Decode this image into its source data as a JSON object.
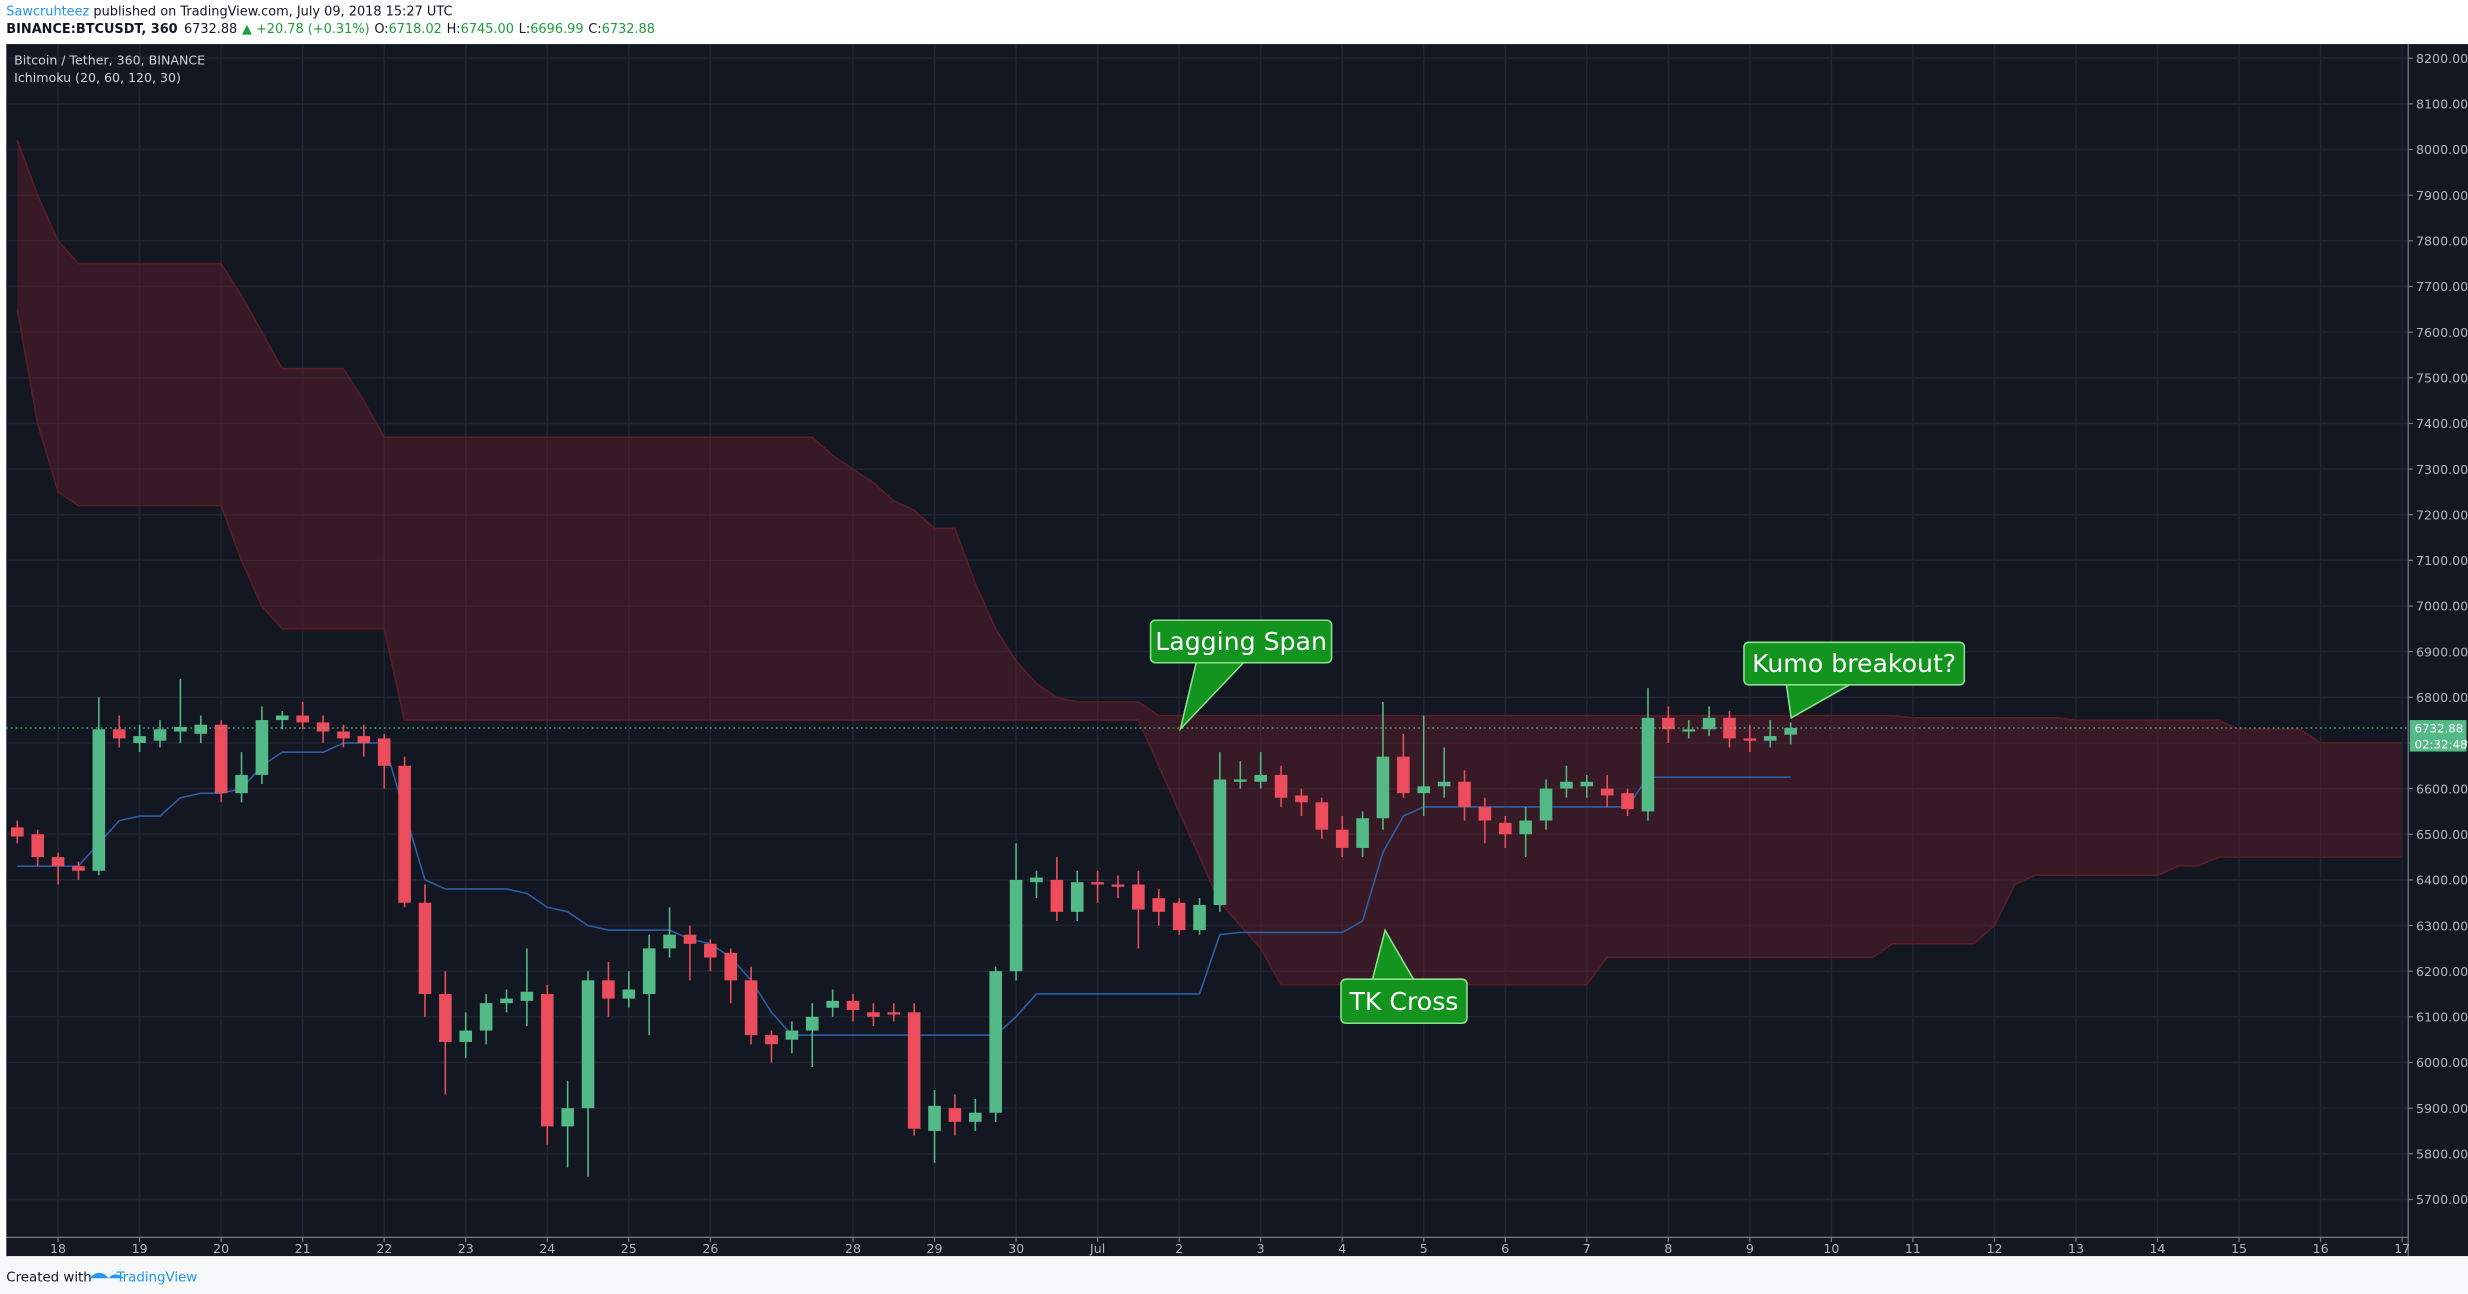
{
  "header": {
    "author": "Sawcruhteez",
    "published": " published on TradingView.com, July 09, 2018 15:27 UTC",
    "symbol": "BINANCE:BTCUSDT, 360",
    "last": "6732.88",
    "change": "▲ +20.78 (+0.31%)",
    "open_label": "O:",
    "open": "6718.02",
    "high_label": "H:",
    "high": "6745.00",
    "low_label": "L:",
    "low": "6696.99",
    "close_label": "C:",
    "close": "6732.88"
  },
  "footer": {
    "created": "Created with",
    "brand": "TradingView"
  },
  "chart_data": {
    "type": "candlestick",
    "title": "Bitcoin / Tether, 360, BINANCE",
    "subtitle": "Ichimoku (20, 60, 120, 30)",
    "up_color": "#53b987",
    "down_color": "#eb4d5c",
    "countdown": "02:32:48",
    "ylim": [
      5617,
      8231
    ],
    "yticks": [
      {
        "value": 5700,
        "label": "5700.00"
      },
      {
        "value": 5800,
        "label": "5800.00"
      },
      {
        "value": 5900,
        "label": "5900.00"
      },
      {
        "value": 6000,
        "label": "6000.00"
      },
      {
        "value": 6100,
        "label": "6100.00"
      },
      {
        "value": 6200,
        "label": "6200.00"
      },
      {
        "value": 6300,
        "label": "6300.00"
      },
      {
        "value": 6400,
        "label": "6400.00"
      },
      {
        "value": 6500,
        "label": "6500.00"
      },
      {
        "value": 6600,
        "label": "6600.00"
      },
      {
        "value": 6700,
        "label": "6700.00"
      },
      {
        "value": 6800,
        "label": "6800.00"
      },
      {
        "value": 6900,
        "label": "6900.00"
      },
      {
        "value": 7000,
        "label": "7000.00"
      },
      {
        "value": 7100,
        "label": "7100.00"
      },
      {
        "value": 7200,
        "label": "7200.00"
      },
      {
        "value": 7300,
        "label": "7300.00"
      },
      {
        "value": 7400,
        "label": "7400.00"
      },
      {
        "value": 7500,
        "label": "7500.00"
      },
      {
        "value": 7600,
        "label": "7600.00"
      },
      {
        "value": 7700,
        "label": "7700.00"
      },
      {
        "value": 7800,
        "label": "7800.00"
      },
      {
        "value": 7900,
        "label": "7900.00"
      },
      {
        "value": 8000,
        "label": "8000.00"
      },
      {
        "value": 8100,
        "label": "8100.00"
      },
      {
        "value": 8200,
        "label": "8200.00"
      }
    ],
    "grid": true,
    "categories": [
      null,
      null,
      "18",
      null,
      null,
      null,
      "19",
      null,
      null,
      null,
      "20",
      null,
      null,
      null,
      "21",
      null,
      null,
      null,
      "22",
      null,
      null,
      null,
      "23",
      null,
      null,
      null,
      "24",
      null,
      null,
      null,
      "25",
      null,
      null,
      null,
      "26",
      null,
      null,
      null,
      null,
      null,
      null,
      "28",
      null,
      null,
      null,
      "29",
      null,
      null,
      null,
      "30",
      null,
      null,
      null,
      "Jul",
      null,
      null,
      null,
      "2",
      null,
      null,
      null,
      "3",
      null,
      null,
      null,
      "4",
      null,
      null,
      null,
      "5",
      null,
      null,
      null,
      "6",
      null,
      null,
      null,
      "7",
      null,
      null,
      null,
      "8",
      null,
      null,
      null,
      "9",
      null,
      null,
      null,
      "10",
      null,
      null,
      null,
      "11",
      null,
      null,
      null,
      "12",
      null,
      null,
      null,
      "13",
      null,
      null,
      null,
      "14",
      null,
      null,
      null,
      "15",
      null,
      null,
      null,
      "16",
      null,
      null,
      null,
      "17"
    ],
    "open": [
      6515,
      6500,
      6450,
      6430,
      6420,
      6730,
      6700,
      6705,
      6725,
      6720,
      6740,
      6590,
      6630,
      6750,
      6760,
      6745,
      6725,
      6715,
      6710,
      6650,
      6350,
      6150,
      6045,
      6070,
      6130,
      6135,
      6150,
      5860,
      5900,
      6180,
      6140,
      6150,
      6250,
      6280,
      6260,
      6240,
      6180,
      6060,
      6050,
      6070,
      6120,
      6135,
      6110,
      6110,
      6110,
      5850,
      5900,
      5870,
      5890,
      6200,
      6395,
      6400,
      6330,
      6395,
      6390,
      6390,
      6360,
      6350,
      6290,
      6345,
      6615,
      6615,
      6630,
      6585,
      6570,
      6510,
      6470,
      6535,
      6670,
      6590,
      6605,
      6615,
      6560,
      6525,
      6500,
      6530,
      6600,
      6605,
      6600,
      6590,
      6550,
      6755,
      6725,
      6730,
      6755,
      6710,
      6705,
      6718.02,
      null,
      null,
      null,
      null,
      null,
      null,
      null,
      null,
      null,
      null,
      null,
      null,
      null,
      null,
      null,
      null,
      null,
      null,
      null,
      null,
      null,
      null,
      null,
      null,
      null,
      null,
      null,
      null,
      null,
      null
    ],
    "high": [
      6530,
      6510,
      6460,
      6440,
      6800,
      6760,
      6740,
      6750,
      6840,
      6760,
      6750,
      6680,
      6780,
      6770,
      6790,
      6760,
      6740,
      6740,
      6720,
      6670,
      6390,
      6200,
      6110,
      6150,
      6160,
      6250,
      6170,
      5960,
      6200,
      6220,
      6200,
      6280,
      6340,
      6300,
      6270,
      6250,
      6210,
      6070,
      6090,
      6130,
      6160,
      6150,
      6130,
      6130,
      6130,
      5940,
      5930,
      5920,
      6210,
      6480,
      6420,
      6450,
      6420,
      6420,
      6410,
      6420,
      6380,
      6360,
      6360,
      6680,
      6660,
      6680,
      6650,
      6600,
      6580,
      6540,
      6550,
      6790,
      6720,
      6760,
      6690,
      6640,
      6580,
      6540,
      6560,
      6620,
      6650,
      6630,
      6630,
      6600,
      6820,
      6780,
      6750,
      6780,
      6770,
      6740,
      6750,
      6745,
      null,
      null,
      null,
      null,
      null,
      null,
      null,
      null,
      null,
      null,
      null,
      null,
      null,
      null,
      null,
      null,
      null,
      null,
      null,
      null,
      null,
      null,
      null,
      null,
      null,
      null,
      null,
      null,
      null,
      null
    ],
    "low": [
      6480,
      6430,
      6390,
      6400,
      6410,
      6690,
      6680,
      6690,
      6700,
      6700,
      6570,
      6570,
      6610,
      6730,
      6730,
      6700,
      6690,
      6670,
      6600,
      6340,
      6100,
      5930,
      6010,
      6040,
      6110,
      6080,
      5820,
      5770,
      5750,
      6100,
      6120,
      6060,
      6230,
      6180,
      6200,
      6130,
      6040,
      6000,
      6020,
      5990,
      6100,
      6090,
      6080,
      6090,
      5840,
      5780,
      5840,
      5850,
      5870,
      6180,
      6360,
      6310,
      6310,
      6350,
      6360,
      6250,
      6300,
      6280,
      6280,
      6330,
      6600,
      6600,
      6560,
      6540,
      6490,
      6450,
      6450,
      6510,
      6580,
      6540,
      6580,
      6530,
      6480,
      6470,
      6450,
      6510,
      6580,
      6580,
      6560,
      6540,
      6530,
      6700,
      6710,
      6715,
      6690,
      6680,
      6690,
      6696.99,
      null,
      null,
      null,
      null,
      null,
      null,
      null,
      null,
      null,
      null,
      null,
      null,
      null,
      null,
      null,
      null,
      null,
      null,
      null,
      null,
      null,
      null,
      null,
      null,
      null,
      null,
      null,
      null,
      null,
      null
    ],
    "close": [
      6495,
      6450,
      6430,
      6420,
      6730,
      6710,
      6715,
      6730,
      6735,
      6740,
      6590,
      6630,
      6750,
      6760,
      6745,
      6725,
      6710,
      6700,
      6650,
      6350,
      6150,
      6045,
      6070,
      6130,
      6140,
      6155,
      5860,
      5900,
      6180,
      6140,
      6160,
      6250,
      6280,
      6260,
      6230,
      6180,
      6060,
      6040,
      6070,
      6100,
      6135,
      6115,
      6100,
      6105,
      5855,
      5905,
      5870,
      5890,
      6200,
      6400,
      6405,
      6330,
      6395,
      6390,
      6385,
      6335,
      6330,
      6290,
      6345,
      6620,
      6620,
      6630,
      6580,
      6570,
      6510,
      6470,
      6535,
      6670,
      6590,
      6605,
      6615,
      6560,
      6530,
      6500,
      6530,
      6600,
      6615,
      6615,
      6585,
      6555,
      6755,
      6730,
      6730,
      6755,
      6710,
      6705,
      6715,
      6732.88,
      null,
      null,
      null,
      null,
      null,
      null,
      null,
      null,
      null,
      null,
      null,
      null,
      null,
      null,
      null,
      null,
      null,
      null,
      null,
      null,
      null,
      null,
      null,
      null,
      null,
      null,
      null,
      null,
      null,
      null
    ],
    "cloud": {
      "color": "#7b1f2b",
      "line_color": "#5a1c26",
      "upper": [
        8020,
        7900,
        7800,
        7750,
        7750,
        7750,
        7750,
        7750,
        7750,
        7750,
        7750,
        7680,
        7600,
        7520,
        7520,
        7520,
        7520,
        7450,
        7370,
        7370,
        7370,
        7370,
        7370,
        7370,
        7370,
        7370,
        7370,
        7370,
        7370,
        7370,
        7370,
        7370,
        7370,
        7370,
        7370,
        7370,
        7370,
        7370,
        7370,
        7370,
        7330,
        7300,
        7270,
        7230,
        7210,
        7170,
        7170,
        7050,
        6950,
        6880,
        6830,
        6800,
        6790,
        6790,
        6790,
        6790,
        6760,
        6760,
        6760,
        6760,
        6760,
        6760,
        6760,
        6760,
        6760,
        6760,
        6760,
        6760,
        6760,
        6760,
        6760,
        6760,
        6760,
        6760,
        6760,
        6760,
        6760,
        6760,
        6760,
        6760,
        6760,
        6760,
        6760,
        6760,
        6760,
        6760,
        6760,
        6760,
        6760,
        6760,
        6760,
        6760,
        6760,
        6755,
        6755,
        6755,
        6755,
        6755,
        6755,
        6755,
        6755,
        6750,
        6750,
        6750,
        6750,
        6750,
        6750,
        6750,
        6750,
        6730,
        6730,
        6730,
        6730,
        6700,
        6700,
        6700,
        6700,
        6700
      ],
      "lower": [
        7650,
        7400,
        7250,
        7220,
        7220,
        7220,
        7220,
        7220,
        7220,
        7220,
        7220,
        7100,
        7000,
        6950,
        6950,
        6950,
        6950,
        6950,
        6950,
        6750,
        6750,
        6750,
        6750,
        6750,
        6750,
        6750,
        6750,
        6750,
        6750,
        6750,
        6750,
        6750,
        6750,
        6750,
        6750,
        6750,
        6750,
        6750,
        6750,
        6750,
        6750,
        6750,
        6750,
        6750,
        6750,
        6750,
        6750,
        6750,
        6750,
        6750,
        6750,
        6750,
        6750,
        6750,
        6750,
        6750,
        6650,
        6550,
        6450,
        6350,
        6300,
        6250,
        6170,
        6170,
        6170,
        6170,
        6170,
        6170,
        6170,
        6170,
        6170,
        6170,
        6170,
        6170,
        6170,
        6170,
        6170,
        6170,
        6230,
        6230,
        6230,
        6230,
        6230,
        6230,
        6230,
        6230,
        6230,
        6230,
        6230,
        6230,
        6230,
        6230,
        6260,
        6260,
        6260,
        6260,
        6260,
        6300,
        6390,
        6410,
        6410,
        6410,
        6410,
        6410,
        6410,
        6410,
        6430,
        6430,
        6450,
        6450,
        6450,
        6450,
        6450,
        6450,
        6450,
        6450,
        6450,
        6450
      ]
    },
    "tenkan": {
      "color": "#2d5fa8",
      "values": [
        6430,
        6430,
        6430,
        6430,
        6480,
        6530,
        6540,
        6540,
        6580,
        6590,
        6590,
        6600,
        6650,
        6680,
        6680,
        6680,
        6700,
        6700,
        6700,
        6550,
        6400,
        6380,
        6380,
        6380,
        6380,
        6370,
        6340,
        6330,
        6300,
        6290,
        6290,
        6290,
        6290,
        6270,
        6260,
        6230,
        6180,
        6110,
        6060,
        6060,
        6060,
        6060,
        6060,
        6060,
        6060,
        6060,
        6060,
        6060,
        6060,
        6100,
        6150,
        6150,
        6150,
        6150,
        6150,
        6150,
        6150,
        6150,
        6150,
        6280,
        6285,
        6285,
        6285,
        6285,
        6285,
        6285,
        6310,
        6460,
        6540,
        6560,
        6560,
        6560,
        6560,
        6560,
        6560,
        6560,
        6560,
        6560,
        6560,
        6560,
        6625,
        6625,
        6625,
        6625,
        6625,
        6625,
        6625,
        6625,
        null,
        null,
        null,
        null,
        null,
        null,
        null,
        null,
        null,
        null,
        null,
        null,
        null,
        null,
        null,
        null,
        null,
        null,
        null,
        null,
        null,
        null,
        null,
        null,
        null,
        null,
        null,
        null,
        null,
        null
      ]
    },
    "annotations": [
      "Lagging Span",
      "TK Cross",
      "Kumo breakout?"
    ]
  }
}
